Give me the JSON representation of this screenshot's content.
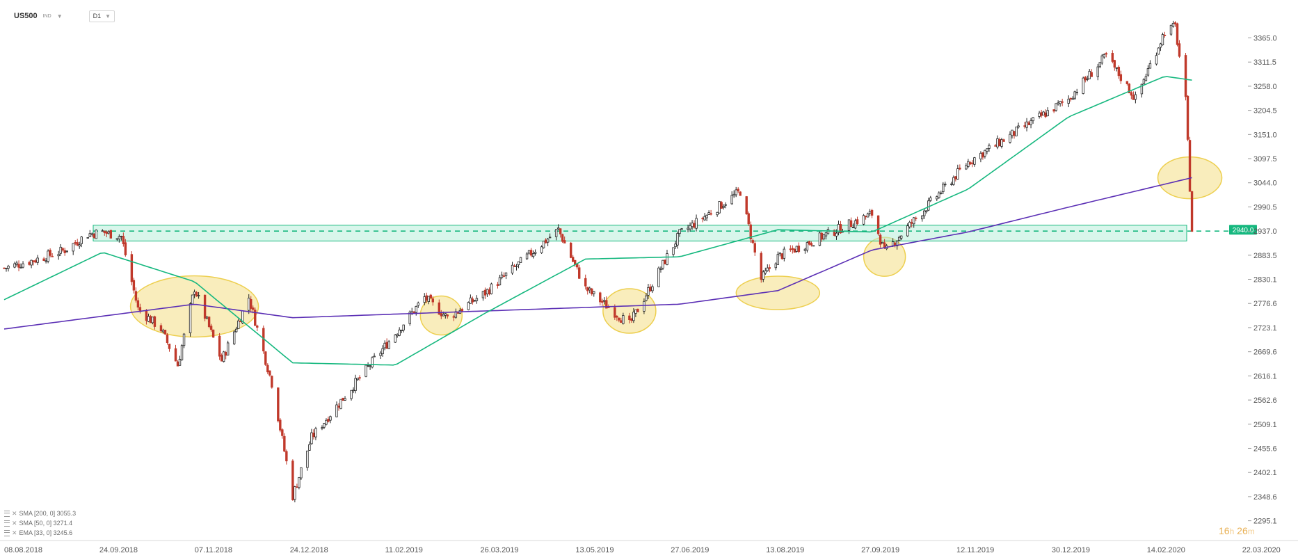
{
  "header": {
    "symbol": "US500",
    "symbol_type": "IND",
    "timeframe": "D1"
  },
  "colors": {
    "up_candle": "#222222",
    "down_candle": "#c0392b",
    "sma200": "#5b2fb5",
    "sma50": "#16b87f",
    "zone_fill": "#b8eedb",
    "zone_stroke": "#16b87f",
    "highlight_fill": "#f7e7a6",
    "highlight_stroke": "#edcf4f",
    "price_tag": "#16b87f"
  },
  "indicators": [
    {
      "label": "SMA [200, 0] 3055.3",
      "color": "#5b2fb5"
    },
    {
      "label": "SMA [50, 0] 3271.4",
      "color": "#16b87f"
    },
    {
      "label": "EMA [33, 0] 3245.6",
      "color": "#999999"
    }
  ],
  "countdown": {
    "hours": "16",
    "hours_unit": "h",
    "minutes": "26",
    "minutes_unit": "m"
  },
  "chart_data": {
    "type": "candlestick",
    "y_axis": {
      "range": [
        2295.1,
        3395
      ],
      "ticks": [
        "3365.0",
        "3311.5",
        "3258.0",
        "3204.5",
        "3151.0",
        "3097.5",
        "3044.0",
        "2990.5",
        "2937.0",
        "2883.5",
        "2830.1",
        "2776.6",
        "2723.1",
        "2669.6",
        "2616.1",
        "2562.6",
        "2509.1",
        "2455.6",
        "2402.1",
        "2348.6",
        "2295.1"
      ]
    },
    "x_axis": {
      "ticks": [
        "08.08.2018",
        "24.09.2018",
        "07.11.2018",
        "24.12.2018",
        "11.02.2019",
        "26.03.2019",
        "13.05.2019",
        "27.06.2019",
        "13.08.2019",
        "27.09.2019",
        "12.11.2019",
        "30.12.2019",
        "14.02.2020",
        "22.03.2020"
      ]
    },
    "current_price": {
      "value": 2940.0,
      "label": "2940.0"
    },
    "support_zone": {
      "from": 2915,
      "to": 2950,
      "dashed_level": 2937
    },
    "price_path": [
      {
        "date": "08.08.2018",
        "close": 2855
      },
      {
        "date": "24.08.2018",
        "close": 2875
      },
      {
        "date": "06.09.2018",
        "close": 2895
      },
      {
        "date": "17.09.2018",
        "close": 2930
      },
      {
        "date": "24.09.2018",
        "close": 2935
      },
      {
        "date": "03.10.2018",
        "close": 2925
      },
      {
        "date": "11.10.2018",
        "close": 2765
      },
      {
        "date": "22.10.2018",
        "close": 2720
      },
      {
        "date": "30.10.2018",
        "close": 2640
      },
      {
        "date": "07.11.2018",
        "close": 2810
      },
      {
        "date": "20.11.2018",
        "close": 2650
      },
      {
        "date": "03.12.2018",
        "close": 2790
      },
      {
        "date": "14.12.2018",
        "close": 2600
      },
      {
        "date": "24.12.2018",
        "close": 2350
      },
      {
        "date": "02.01.2019",
        "close": 2480
      },
      {
        "date": "11.02.2019",
        "close": 2710
      },
      {
        "date": "25.02.2019",
        "close": 2790
      },
      {
        "date": "08.03.2019",
        "close": 2745
      },
      {
        "date": "26.03.2019",
        "close": 2800
      },
      {
        "date": "30.04.2019",
        "close": 2940
      },
      {
        "date": "13.05.2019",
        "close": 2810
      },
      {
        "date": "03.06.2019",
        "close": 2730
      },
      {
        "date": "27.06.2019",
        "close": 2930
      },
      {
        "date": "26.07.2019",
        "close": 3025
      },
      {
        "date": "05.08.2019",
        "close": 2830
      },
      {
        "date": "13.08.2019",
        "close": 2880
      },
      {
        "date": "27.09.2019",
        "close": 2975
      },
      {
        "date": "03.10.2019",
        "close": 2890
      },
      {
        "date": "12.11.2019",
        "close": 3090
      },
      {
        "date": "30.12.2019",
        "close": 3230
      },
      {
        "date": "17.01.2020",
        "close": 3325
      },
      {
        "date": "31.01.2020",
        "close": 3230
      },
      {
        "date": "14.02.2020",
        "close": 3380
      },
      {
        "date": "19.02.2020",
        "close": 3390
      },
      {
        "date": "24.02.2020",
        "close": 3225
      },
      {
        "date": "27.02.2020",
        "close": 2940
      }
    ],
    "sma200_path": [
      {
        "date": "08.08.2018",
        "value": 2720
      },
      {
        "date": "07.11.2018",
        "value": 2775
      },
      {
        "date": "24.12.2018",
        "value": 2745
      },
      {
        "date": "26.03.2019",
        "value": 2760
      },
      {
        "date": "27.06.2019",
        "value": 2775
      },
      {
        "date": "13.08.2019",
        "value": 2805
      },
      {
        "date": "27.09.2019",
        "value": 2895
      },
      {
        "date": "12.11.2019",
        "value": 2935
      },
      {
        "date": "30.12.2019",
        "value": 2990
      },
      {
        "date": "27.02.2020",
        "value": 3055.3
      }
    ],
    "sma50_path": [
      {
        "date": "08.08.2018",
        "value": 2785
      },
      {
        "date": "24.09.2018",
        "value": 2890
      },
      {
        "date": "07.11.2018",
        "value": 2825
      },
      {
        "date": "24.12.2018",
        "value": 2645
      },
      {
        "date": "11.02.2019",
        "value": 2640
      },
      {
        "date": "26.03.2019",
        "value": 2755
      },
      {
        "date": "13.05.2019",
        "value": 2875
      },
      {
        "date": "27.06.2019",
        "value": 2880
      },
      {
        "date": "13.08.2019",
        "value": 2940
      },
      {
        "date": "27.09.2019",
        "value": 2935
      },
      {
        "date": "12.11.2019",
        "value": 3030
      },
      {
        "date": "30.12.2019",
        "value": 3190
      },
      {
        "date": "14.02.2020",
        "value": 3280
      },
      {
        "date": "27.02.2020",
        "value": 3271.4
      }
    ],
    "highlighted_touches": [
      {
        "date": "07.11.2018",
        "price": 2770
      },
      {
        "date": "05.03.2019",
        "price": 2750
      },
      {
        "date": "03.06.2019",
        "price": 2760
      },
      {
        "date": "13.08.2019",
        "price": 2800
      },
      {
        "date": "03.10.2019",
        "price": 2880
      },
      {
        "date": "26.02.2020",
        "price": 3055
      }
    ]
  }
}
